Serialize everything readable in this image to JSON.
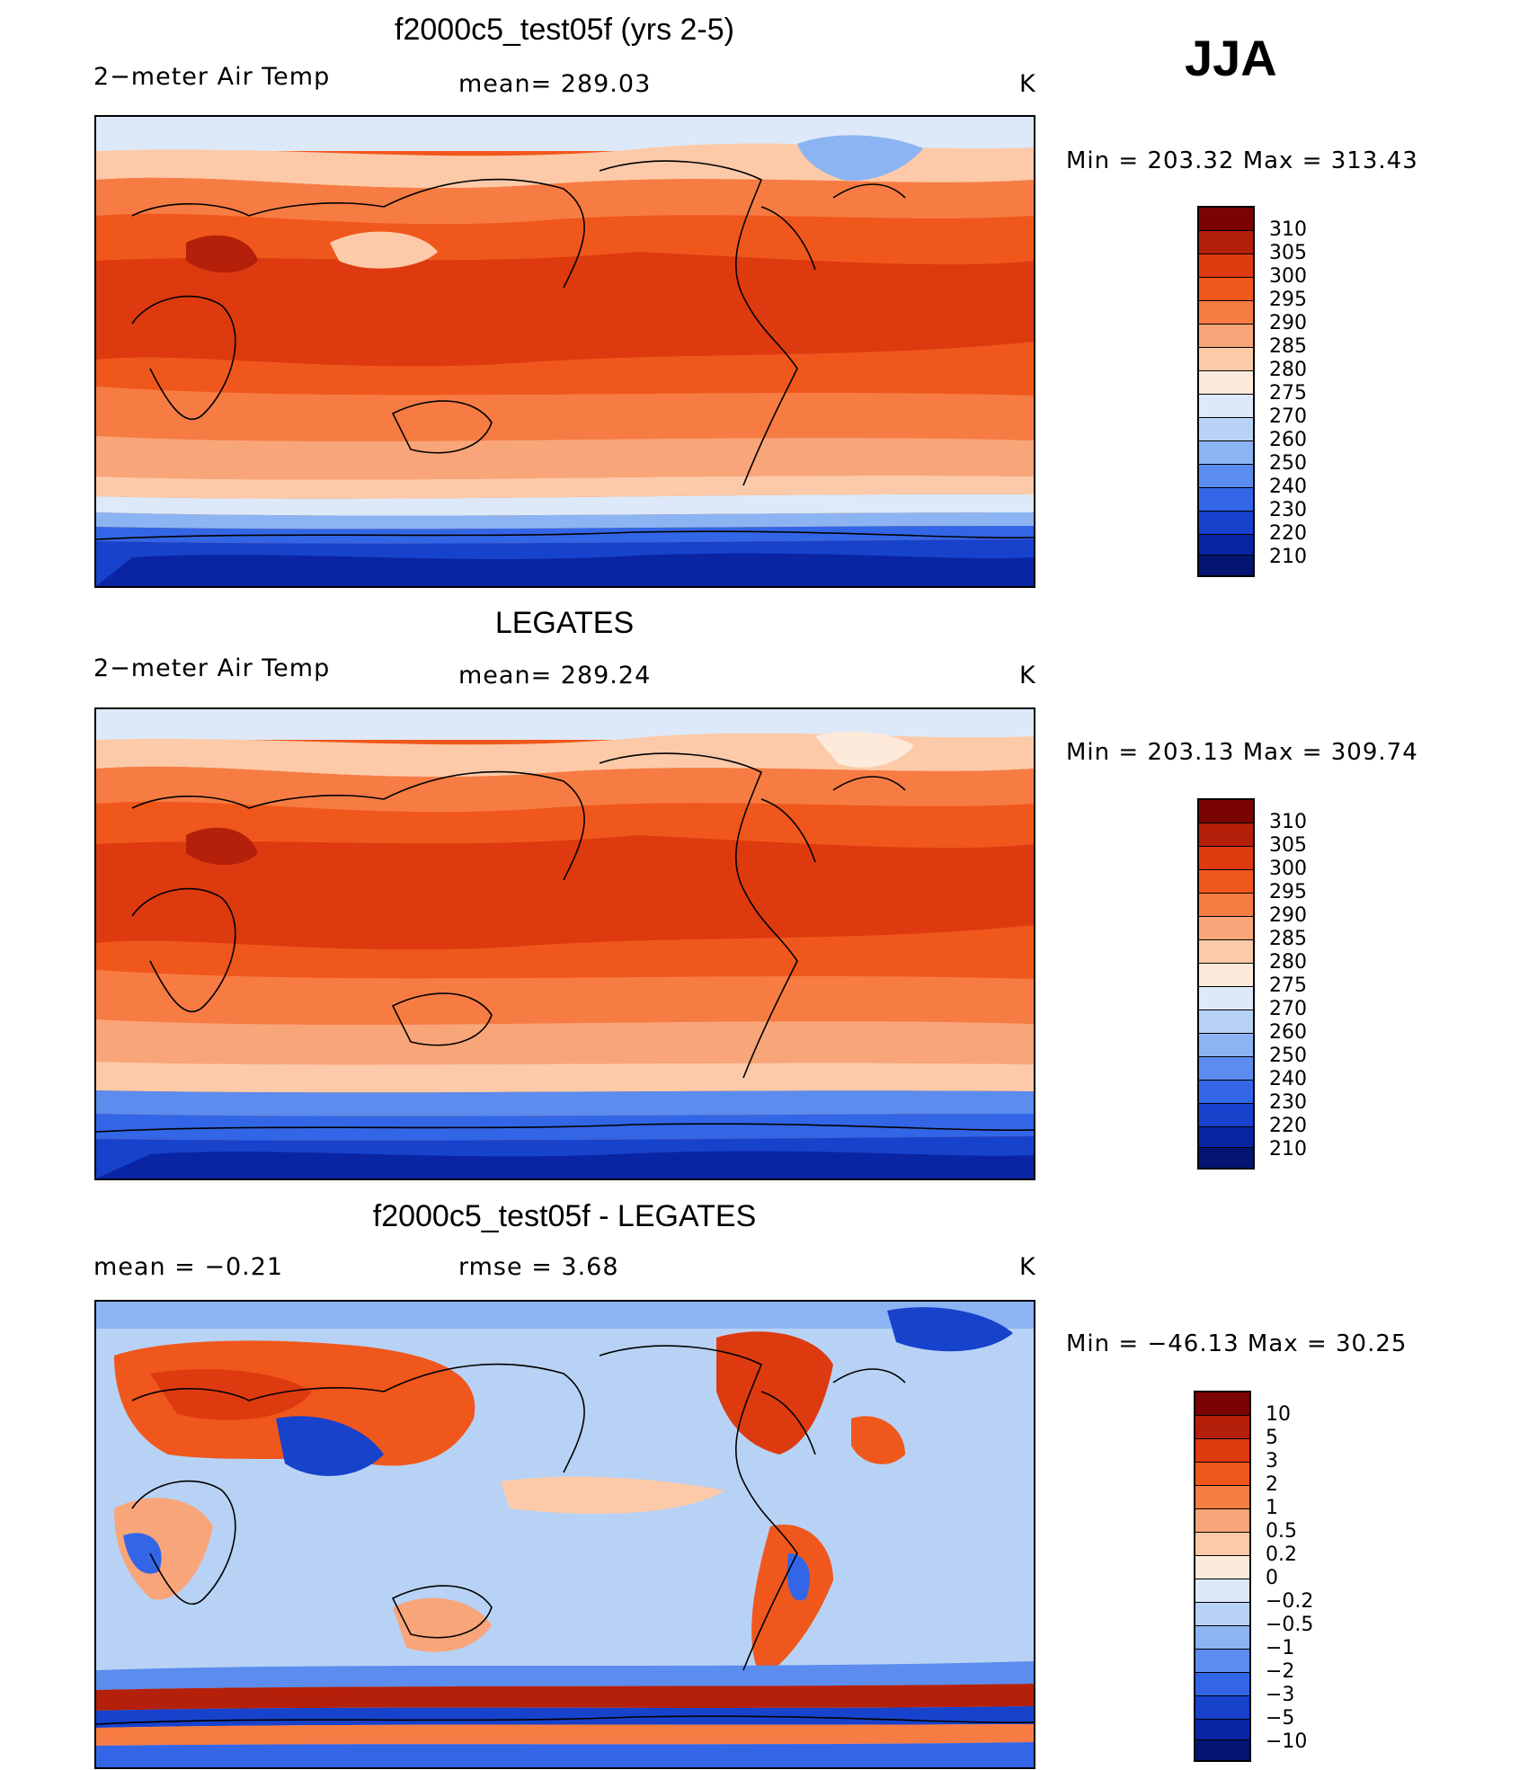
{
  "season": "JJA",
  "units": "K",
  "panels": [
    {
      "id": "model",
      "title": "f2000c5_test05f (yrs 2-5)",
      "left_label": "2−meter Air Temp",
      "center_label": "mean=  289.03",
      "right_label": "K",
      "minmax": "Min  =  203.32  Max  =  313.43",
      "colorbar_ticks": [
        "310",
        "305",
        "300",
        "295",
        "290",
        "285",
        "280",
        "275",
        "270",
        "260",
        "250",
        "240",
        "230",
        "220",
        "210"
      ]
    },
    {
      "id": "obs",
      "title": "LEGATES",
      "left_label": "2−meter Air Temp",
      "center_label": "mean=  289.24",
      "right_label": "K",
      "minmax": "Min  =  203.13  Max  =  309.74",
      "colorbar_ticks": [
        "310",
        "305",
        "300",
        "295",
        "290",
        "285",
        "280",
        "275",
        "270",
        "260",
        "250",
        "240",
        "230",
        "220",
        "210"
      ]
    },
    {
      "id": "diff",
      "title": "f2000c5_test05f - LEGATES",
      "left_label": "mean  =    −0.21",
      "center_label": "rmse  =     3.68",
      "right_label": "K",
      "minmax": "Min  =  −46.13  Max  =    30.25",
      "colorbar_ticks": [
        "10",
        "5",
        "3",
        "2",
        "1",
        "0.5",
        "0.2",
        "0",
        "−0.2",
        "−0.5",
        "−1",
        "−2",
        "−3",
        "−5",
        "−10"
      ]
    }
  ],
  "colors": {
    "temp_scale": [
      "#7a0403",
      "#b4200a",
      "#dd3a10",
      "#f0571c",
      "#f67c43",
      "#f9a57a",
      "#fccaa8",
      "#feeadb",
      "#dde9f8",
      "#b8d2f5",
      "#8db4f2",
      "#5b8cee",
      "#3366e6",
      "#1742cc",
      "#0a25a3",
      "#031570"
    ],
    "diff_scale": [
      "#7a0403",
      "#b4200a",
      "#dd3a10",
      "#f0571c",
      "#f67c43",
      "#f9a57a",
      "#fccaa8",
      "#feeadb",
      "#dde9f8",
      "#b8d2f5",
      "#8db4f2",
      "#5b8cee",
      "#3366e6",
      "#1742cc",
      "#0a25a3",
      "#031570"
    ]
  }
}
